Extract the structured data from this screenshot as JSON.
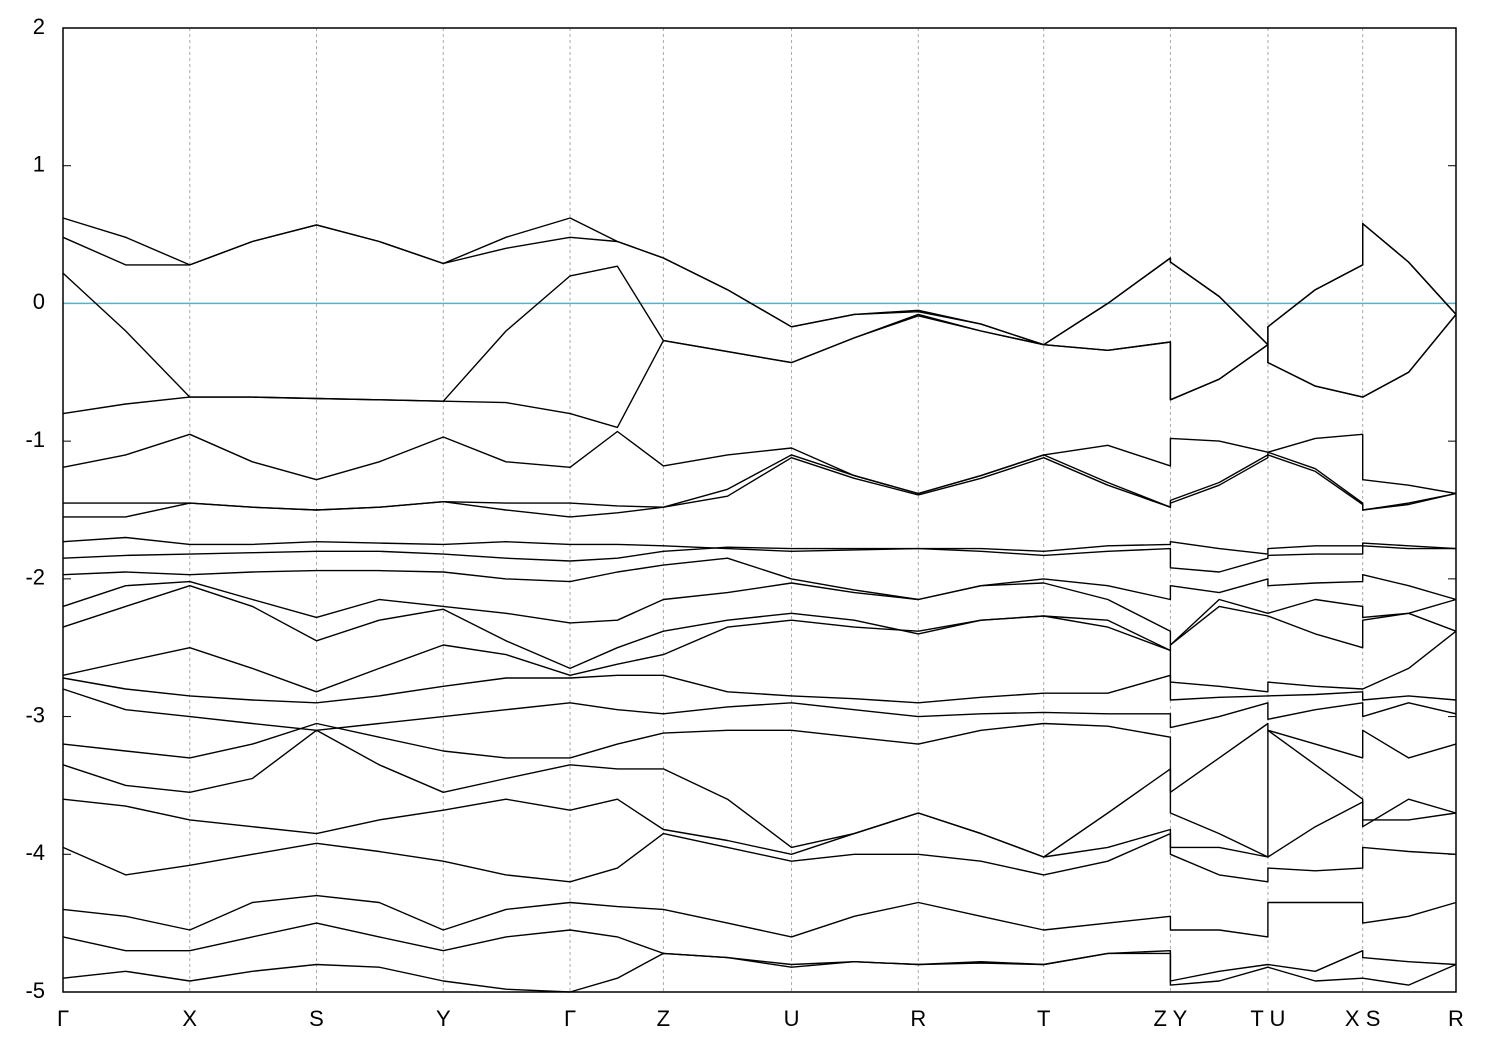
{
  "chart_data": {
    "type": "band-structure",
    "color": "#000000",
    "fermi_level": 0,
    "fermi_color": "#5bb0c8",
    "grid": true,
    "xlim": [
      0,
      1
    ],
    "ylim": [
      -5,
      2
    ],
    "yticks": [
      -5,
      -4,
      -3,
      -2,
      -1,
      0,
      1,
      2
    ],
    "xticks": [
      {
        "value": 0,
        "label": "Γ"
      },
      {
        "value": 0.091,
        "label": "X"
      },
      {
        "value": 0.182,
        "label": "S"
      },
      {
        "value": 0.273,
        "label": "Y"
      },
      {
        "value": 0.364,
        "label": "Γ"
      },
      {
        "value": 0.431,
        "label": "Z"
      },
      {
        "value": 0.523,
        "label": "U"
      },
      {
        "value": 0.614,
        "label": "R"
      },
      {
        "value": 0.704,
        "label": "T"
      },
      {
        "value": 0.795,
        "label": "Z Y"
      },
      {
        "value": 0.865,
        "label": "T U"
      },
      {
        "value": 0.933,
        "label": "X S"
      },
      {
        "value": 1,
        "label": "R"
      }
    ],
    "x": [
      0,
      0.045,
      0.091,
      0.136,
      0.182,
      0.227,
      0.273,
      0.318,
      0.364,
      0.398,
      0.431,
      0.477,
      0.523,
      0.568,
      0.614,
      0.659,
      0.704,
      0.75,
      0.795,
      0.795,
      0.83,
      0.865,
      0.865,
      0.899,
      0.933,
      0.933,
      0.966,
      1
    ],
    "bands": [
      [
        0.62,
        0.48,
        0.28,
        0.45,
        0.57,
        0.45,
        0.29,
        0.48,
        0.62,
        0.45,
        0.33,
        0.1,
        -0.17,
        -0.08,
        -0.05,
        -0.15,
        -0.3,
        0.0,
        0.33,
        0.3,
        0.05,
        -0.3,
        -0.17,
        0.1,
        0.28,
        0.58,
        0.3,
        -0.08
      ],
      [
        0.48,
        0.28,
        0.28,
        0.45,
        0.57,
        0.45,
        0.29,
        0.4,
        0.48,
        0.45,
        0.33,
        0.1,
        -0.17,
        -0.08,
        -0.06,
        -0.15,
        -0.3,
        0.0,
        0.33,
        0.3,
        0.05,
        -0.3,
        -0.17,
        0.1,
        0.28,
        0.58,
        0.3,
        -0.08
      ],
      [
        0.22,
        -0.2,
        -0.68,
        -0.68,
        -0.69,
        -0.7,
        -0.71,
        -0.2,
        0.2,
        0.27,
        -0.27,
        -0.35,
        -0.43,
        -0.25,
        -0.08,
        -0.2,
        -0.3,
        -0.34,
        -0.28,
        -0.7,
        -0.55,
        -0.3,
        -0.43,
        -0.6,
        -0.68,
        -0.68,
        -0.5,
        -0.08
      ],
      [
        -0.8,
        -0.73,
        -0.68,
        -0.68,
        -0.69,
        -0.7,
        -0.71,
        -0.72,
        -0.8,
        -0.9,
        -0.27,
        -0.35,
        -0.43,
        -0.25,
        -0.09,
        -0.2,
        -0.3,
        -0.34,
        -0.28,
        -0.7,
        -0.55,
        -0.3,
        -0.43,
        -0.6,
        -0.68,
        -0.68,
        -0.5,
        -0.08
      ],
      [
        -1.19,
        -1.1,
        -0.95,
        -1.15,
        -1.28,
        -1.15,
        -0.97,
        -1.15,
        -1.19,
        -0.93,
        -1.18,
        -1.1,
        -1.05,
        -1.25,
        -1.38,
        -1.25,
        -1.1,
        -1.03,
        -1.18,
        -0.98,
        -1.0,
        -1.08,
        -1.08,
        -0.98,
        -0.95,
        -1.28,
        -1.32,
        -1.38
      ],
      [
        -1.45,
        -1.45,
        -1.45,
        -1.48,
        -1.5,
        -1.48,
        -1.44,
        -1.45,
        -1.45,
        -1.47,
        -1.48,
        -1.35,
        -1.1,
        -1.25,
        -1.38,
        -1.25,
        -1.1,
        -1.3,
        -1.48,
        -1.43,
        -1.3,
        -1.1,
        -1.08,
        -1.2,
        -1.45,
        -1.5,
        -1.45,
        -1.38
      ],
      [
        -1.55,
        -1.55,
        -1.45,
        -1.48,
        -1.5,
        -1.48,
        -1.44,
        -1.5,
        -1.55,
        -1.52,
        -1.48,
        -1.4,
        -1.12,
        -1.27,
        -1.39,
        -1.27,
        -1.12,
        -1.32,
        -1.48,
        -1.45,
        -1.32,
        -1.12,
        -1.1,
        -1.22,
        -1.46,
        -1.5,
        -1.46,
        -1.38
      ],
      [
        -1.73,
        -1.7,
        -1.75,
        -1.75,
        -1.73,
        -1.74,
        -1.75,
        -1.73,
        -1.75,
        -1.75,
        -1.76,
        -1.78,
        -1.8,
        -1.79,
        -1.78,
        -1.78,
        -1.8,
        -1.76,
        -1.75,
        -1.73,
        -1.78,
        -1.82,
        -1.78,
        -1.76,
        -1.76,
        -1.74,
        -1.76,
        -1.78
      ],
      [
        -1.85,
        -1.83,
        -1.82,
        -1.81,
        -1.8,
        -1.8,
        -1.82,
        -1.85,
        -1.87,
        -1.85,
        -1.8,
        -1.77,
        -1.78,
        -1.78,
        -1.78,
        -1.8,
        -1.83,
        -1.8,
        -1.78,
        -1.92,
        -1.95,
        -1.85,
        -1.83,
        -1.82,
        -1.82,
        -1.76,
        -1.78,
        -1.78
      ],
      [
        -1.97,
        -1.95,
        -1.97,
        -1.95,
        -1.94,
        -1.94,
        -1.95,
        -2.0,
        -2.02,
        -1.95,
        -1.9,
        -1.85,
        -2.0,
        -2.08,
        -2.15,
        -2.05,
        -2.0,
        -2.05,
        -2.15,
        -2.05,
        -2.1,
        -2.0,
        -2.05,
        -2.03,
        -2.02,
        -1.97,
        -2.05,
        -2.15
      ],
      [
        -2.2,
        -2.05,
        -2.02,
        -2.15,
        -2.28,
        -2.15,
        -2.2,
        -2.25,
        -2.32,
        -2.3,
        -2.15,
        -2.1,
        -2.03,
        -2.1,
        -2.15,
        -2.05,
        -2.03,
        -2.15,
        -2.38,
        -2.48,
        -2.15,
        -2.25,
        -2.25,
        -2.15,
        -2.2,
        -2.28,
        -2.25,
        -2.15
      ],
      [
        -2.35,
        -2.2,
        -2.05,
        -2.2,
        -2.45,
        -2.3,
        -2.22,
        -2.45,
        -2.65,
        -2.5,
        -2.38,
        -2.3,
        -2.25,
        -2.3,
        -2.4,
        -2.3,
        -2.27,
        -2.35,
        -2.52,
        -2.48,
        -2.2,
        -2.27,
        -2.27,
        -2.4,
        -2.5,
        -2.3,
        -2.25,
        -2.38
      ],
      [
        -2.7,
        -2.6,
        -2.5,
        -2.65,
        -2.82,
        -2.65,
        -2.48,
        -2.55,
        -2.7,
        -2.62,
        -2.55,
        -2.35,
        -2.3,
        -2.35,
        -2.38,
        -2.3,
        -2.27,
        -2.3,
        -2.52,
        -2.75,
        -2.78,
        -2.82,
        -2.75,
        -2.78,
        -2.8,
        -2.8,
        -2.65,
        -2.38
      ],
      [
        -2.72,
        -2.8,
        -2.85,
        -2.88,
        -2.9,
        -2.85,
        -2.78,
        -2.72,
        -2.72,
        -2.7,
        -2.7,
        -2.82,
        -2.85,
        -2.87,
        -2.9,
        -2.86,
        -2.83,
        -2.83,
        -2.7,
        -2.88,
        -2.86,
        -2.85,
        -2.85,
        -2.84,
        -2.82,
        -2.88,
        -2.85,
        -2.88
      ],
      [
        -2.8,
        -2.95,
        -3.0,
        -3.05,
        -3.1,
        -3.05,
        -3.0,
        -2.95,
        -2.9,
        -2.95,
        -2.98,
        -2.93,
        -2.9,
        -2.95,
        -3.0,
        -2.98,
        -2.97,
        -2.98,
        -2.98,
        -3.08,
        -3.0,
        -2.9,
        -3.02,
        -2.95,
        -2.9,
        -3.0,
        -2.9,
        -2.98
      ],
      [
        -3.2,
        -3.25,
        -3.3,
        -3.2,
        -3.05,
        -3.15,
        -3.25,
        -3.3,
        -3.3,
        -3.2,
        -3.12,
        -3.1,
        -3.1,
        -3.15,
        -3.2,
        -3.1,
        -3.05,
        -3.07,
        -3.15,
        -3.55,
        -3.3,
        -3.05,
        -3.1,
        -3.2,
        -3.3,
        -3.1,
        -3.3,
        -3.2
      ],
      [
        -3.35,
        -3.5,
        -3.55,
        -3.45,
        -3.1,
        -3.35,
        -3.55,
        -3.45,
        -3.35,
        -3.38,
        -3.38,
        -3.6,
        -3.95,
        -3.85,
        -3.7,
        -3.85,
        -4.02,
        -3.7,
        -3.38,
        -3.7,
        -3.85,
        -4.02,
        -3.1,
        -3.35,
        -3.6,
        -3.8,
        -3.6,
        -3.7
      ],
      [
        -3.6,
        -3.65,
        -3.75,
        -3.8,
        -3.85,
        -3.75,
        -3.68,
        -3.6,
        -3.68,
        -3.6,
        -3.82,
        -3.9,
        -4.0,
        -3.85,
        -3.7,
        -3.85,
        -4.02,
        -3.95,
        -3.82,
        -3.95,
        -3.95,
        -4.02,
        -4.02,
        -3.8,
        -3.62,
        -3.75,
        -3.75,
        -3.7
      ],
      [
        -3.95,
        -4.15,
        -4.08,
        -4.0,
        -3.92,
        -3.98,
        -4.05,
        -4.15,
        -4.2,
        -4.1,
        -3.85,
        -3.95,
        -4.05,
        -4.0,
        -4.0,
        -4.05,
        -4.15,
        -4.05,
        -3.85,
        -4.0,
        -4.15,
        -4.2,
        -4.1,
        -4.12,
        -4.1,
        -3.95,
        -3.98,
        -4.0
      ],
      [
        -4.4,
        -4.45,
        -4.55,
        -4.35,
        -4.3,
        -4.35,
        -4.55,
        -4.4,
        -4.35,
        -4.38,
        -4.4,
        -4.5,
        -4.6,
        -4.45,
        -4.35,
        -4.45,
        -4.55,
        -4.5,
        -4.45,
        -4.55,
        -4.55,
        -4.6,
        -4.35,
        -4.35,
        -4.35,
        -4.5,
        -4.45,
        -4.35
      ],
      [
        -4.6,
        -4.7,
        -4.7,
        -4.6,
        -4.5,
        -4.6,
        -4.7,
        -4.6,
        -4.55,
        -4.6,
        -4.72,
        -4.75,
        -4.8,
        -4.78,
        -4.8,
        -4.78,
        -4.8,
        -4.72,
        -4.7,
        -4.92,
        -4.85,
        -4.8,
        -4.8,
        -4.85,
        -4.7,
        -4.75,
        -4.78,
        -4.8
      ],
      [
        -4.9,
        -4.85,
        -4.92,
        -4.85,
        -4.8,
        -4.82,
        -4.92,
        -4.98,
        -5.0,
        -4.9,
        -4.72,
        -4.75,
        -4.82,
        -4.78,
        -4.8,
        -4.79,
        -4.8,
        -4.72,
        -4.72,
        -4.95,
        -4.92,
        -4.82,
        -4.82,
        -4.92,
        -4.9,
        -4.9,
        -4.95,
        -4.8
      ]
    ]
  }
}
